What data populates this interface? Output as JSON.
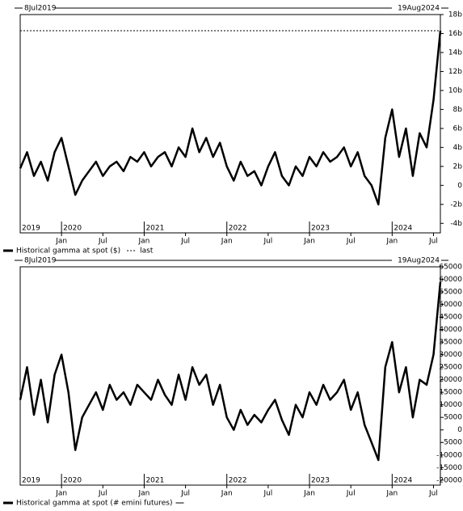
{
  "chart_data": [
    {
      "type": "line",
      "start_label": "8Jul2019",
      "end_label": "19Aug2024",
      "last_label": "last",
      "x": [
        "2019-07",
        "2019-08",
        "2019-09",
        "2019-10",
        "2019-11",
        "2019-12",
        "2020-01",
        "2020-02",
        "2020-03",
        "2020-04",
        "2020-05",
        "2020-06",
        "2020-07",
        "2020-08",
        "2020-09",
        "2020-10",
        "2020-11",
        "2020-12",
        "2021-01",
        "2021-02",
        "2021-03",
        "2021-04",
        "2021-05",
        "2021-06",
        "2021-07",
        "2021-08",
        "2021-09",
        "2021-10",
        "2021-11",
        "2021-12",
        "2022-01",
        "2022-02",
        "2022-03",
        "2022-04",
        "2022-05",
        "2022-06",
        "2022-07",
        "2022-08",
        "2022-09",
        "2022-10",
        "2022-11",
        "2022-12",
        "2023-01",
        "2023-02",
        "2023-03",
        "2023-04",
        "2023-05",
        "2023-06",
        "2023-07",
        "2023-08",
        "2023-09",
        "2023-10",
        "2023-11",
        "2023-12",
        "2024-01",
        "2024-02",
        "2024-03",
        "2024-04",
        "2024-05",
        "2024-06",
        "2024-07",
        "2024-08"
      ],
      "series": [
        {
          "name": "Historical gamma at spot ($)",
          "color": "#000000",
          "values": [
            1.8,
            3.5,
            1.0,
            2.5,
            0.5,
            3.5,
            5.0,
            2.0,
            -1.0,
            0.5,
            1.5,
            2.5,
            1.0,
            2.0,
            2.5,
            1.5,
            3.0,
            2.5,
            3.5,
            2.0,
            3.0,
            3.5,
            2.0,
            4.0,
            3.0,
            6.0,
            3.5,
            5.0,
            3.0,
            4.5,
            2.0,
            0.5,
            2.5,
            1.0,
            1.5,
            0.0,
            2.0,
            3.5,
            1.0,
            0.0,
            2.0,
            1.0,
            3.0,
            2.0,
            3.5,
            2.5,
            3.0,
            4.0,
            2.0,
            3.5,
            1.0,
            0.0,
            -2.0,
            5.0,
            8.0,
            3.0,
            6.0,
            1.0,
            5.5,
            4.0,
            9.0,
            16.3
          ]
        }
      ],
      "xlim": [
        "2019-07",
        "2024-08"
      ],
      "xticks": [
        {
          "value": "2020-01",
          "label": "Jan"
        },
        {
          "value": "2020-07",
          "label": "Jul"
        },
        {
          "value": "2021-01",
          "label": "Jan"
        },
        {
          "value": "2021-07",
          "label": "Jul"
        },
        {
          "value": "2022-01",
          "label": "Jan"
        },
        {
          "value": "2022-07",
          "label": "Jul"
        },
        {
          "value": "2023-01",
          "label": "Jan"
        },
        {
          "value": "2023-07",
          "label": "Jul"
        },
        {
          "value": "2024-01",
          "label": "Jan"
        },
        {
          "value": "2024-07",
          "label": "Jul"
        }
      ],
      "year_ticks": [
        {
          "value": "2019-07",
          "label": "2019"
        },
        {
          "value": "2020-01",
          "label": "2020"
        },
        {
          "value": "2021-01",
          "label": "2021"
        },
        {
          "value": "2022-01",
          "label": "2022"
        },
        {
          "value": "2023-01",
          "label": "2023"
        },
        {
          "value": "2024-01",
          "label": "2024"
        }
      ],
      "ylim": [
        -5,
        18
      ],
      "yticks": [
        {
          "value": 18,
          "label": "18b"
        },
        {
          "value": 16,
          "label": "16b"
        },
        {
          "value": 14,
          "label": "14b"
        },
        {
          "value": 12,
          "label": "12b"
        },
        {
          "value": 10,
          "label": "10b"
        },
        {
          "value": 8,
          "label": "8b"
        },
        {
          "value": 6,
          "label": "6b"
        },
        {
          "value": 4,
          "label": "4b"
        },
        {
          "value": 2,
          "label": "2b"
        },
        0,
        {
          "value": -2,
          "label": "-2b"
        },
        {
          "value": -4,
          "label": "-4b"
        }
      ]
    },
    {
      "type": "line",
      "start_label": "8Jul2019",
      "end_label": "19Aug2024",
      "x": [
        "2019-07",
        "2019-08",
        "2019-09",
        "2019-10",
        "2019-11",
        "2019-12",
        "2020-01",
        "2020-02",
        "2020-03",
        "2020-04",
        "2020-05",
        "2020-06",
        "2020-07",
        "2020-08",
        "2020-09",
        "2020-10",
        "2020-11",
        "2020-12",
        "2021-01",
        "2021-02",
        "2021-03",
        "2021-04",
        "2021-05",
        "2021-06",
        "2021-07",
        "2021-08",
        "2021-09",
        "2021-10",
        "2021-11",
        "2021-12",
        "2022-01",
        "2022-02",
        "2022-03",
        "2022-04",
        "2022-05",
        "2022-06",
        "2022-07",
        "2022-08",
        "2022-09",
        "2022-10",
        "2022-11",
        "2022-12",
        "2023-01",
        "2023-02",
        "2023-03",
        "2023-04",
        "2023-05",
        "2023-06",
        "2023-07",
        "2023-08",
        "2023-09",
        "2023-10",
        "2023-11",
        "2023-12",
        "2024-01",
        "2024-02",
        "2024-03",
        "2024-04",
        "2024-05",
        "2024-06",
        "2024-07",
        "2024-08"
      ],
      "series": [
        {
          "name": "Historical gamma at spot (# emini futures)",
          "color": "#000000",
          "values": [
            12000,
            25000,
            6000,
            20000,
            3000,
            22000,
            30000,
            15000,
            -8000,
            5000,
            10000,
            15000,
            8000,
            18000,
            12000,
            15000,
            10000,
            18000,
            15000,
            12000,
            20000,
            14000,
            10000,
            22000,
            12000,
            25000,
            18000,
            22000,
            10000,
            18000,
            5000,
            0,
            8000,
            2000,
            6000,
            3000,
            8000,
            12000,
            4000,
            -2000,
            10000,
            5000,
            15000,
            10000,
            18000,
            12000,
            15000,
            20000,
            8000,
            15000,
            2000,
            -5000,
            -12000,
            25000,
            35000,
            15000,
            25000,
            5000,
            20000,
            18000,
            30000,
            59000
          ]
        }
      ],
      "xlim": [
        "2019-07",
        "2024-08"
      ],
      "xticks": [
        {
          "value": "2020-01",
          "label": "Jan"
        },
        {
          "value": "2020-07",
          "label": "Jul"
        },
        {
          "value": "2021-01",
          "label": "Jan"
        },
        {
          "value": "2021-07",
          "label": "Jul"
        },
        {
          "value": "2022-01",
          "label": "Jan"
        },
        {
          "value": "2022-07",
          "label": "Jul"
        },
        {
          "value": "2023-01",
          "label": "Jan"
        },
        {
          "value": "2023-07",
          "label": "Jul"
        },
        {
          "value": "2024-01",
          "label": "Jan"
        },
        {
          "value": "2024-07",
          "label": "Jul"
        }
      ],
      "year_ticks": [
        {
          "value": "2019-07",
          "label": "2019"
        },
        {
          "value": "2020-01",
          "label": "2020"
        },
        {
          "value": "2021-01",
          "label": "2021"
        },
        {
          "value": "2022-01",
          "label": "2022"
        },
        {
          "value": "2023-01",
          "label": "2023"
        },
        {
          "value": "2024-01",
          "label": "2024"
        }
      ],
      "ylim": [
        -22000,
        65000
      ],
      "yticks": [
        65000,
        60000,
        55000,
        50000,
        45000,
        40000,
        35000,
        30000,
        25000,
        20000,
        15000,
        10000,
        5000,
        0,
        -5000,
        -10000,
        -15000,
        -20000
      ]
    }
  ]
}
